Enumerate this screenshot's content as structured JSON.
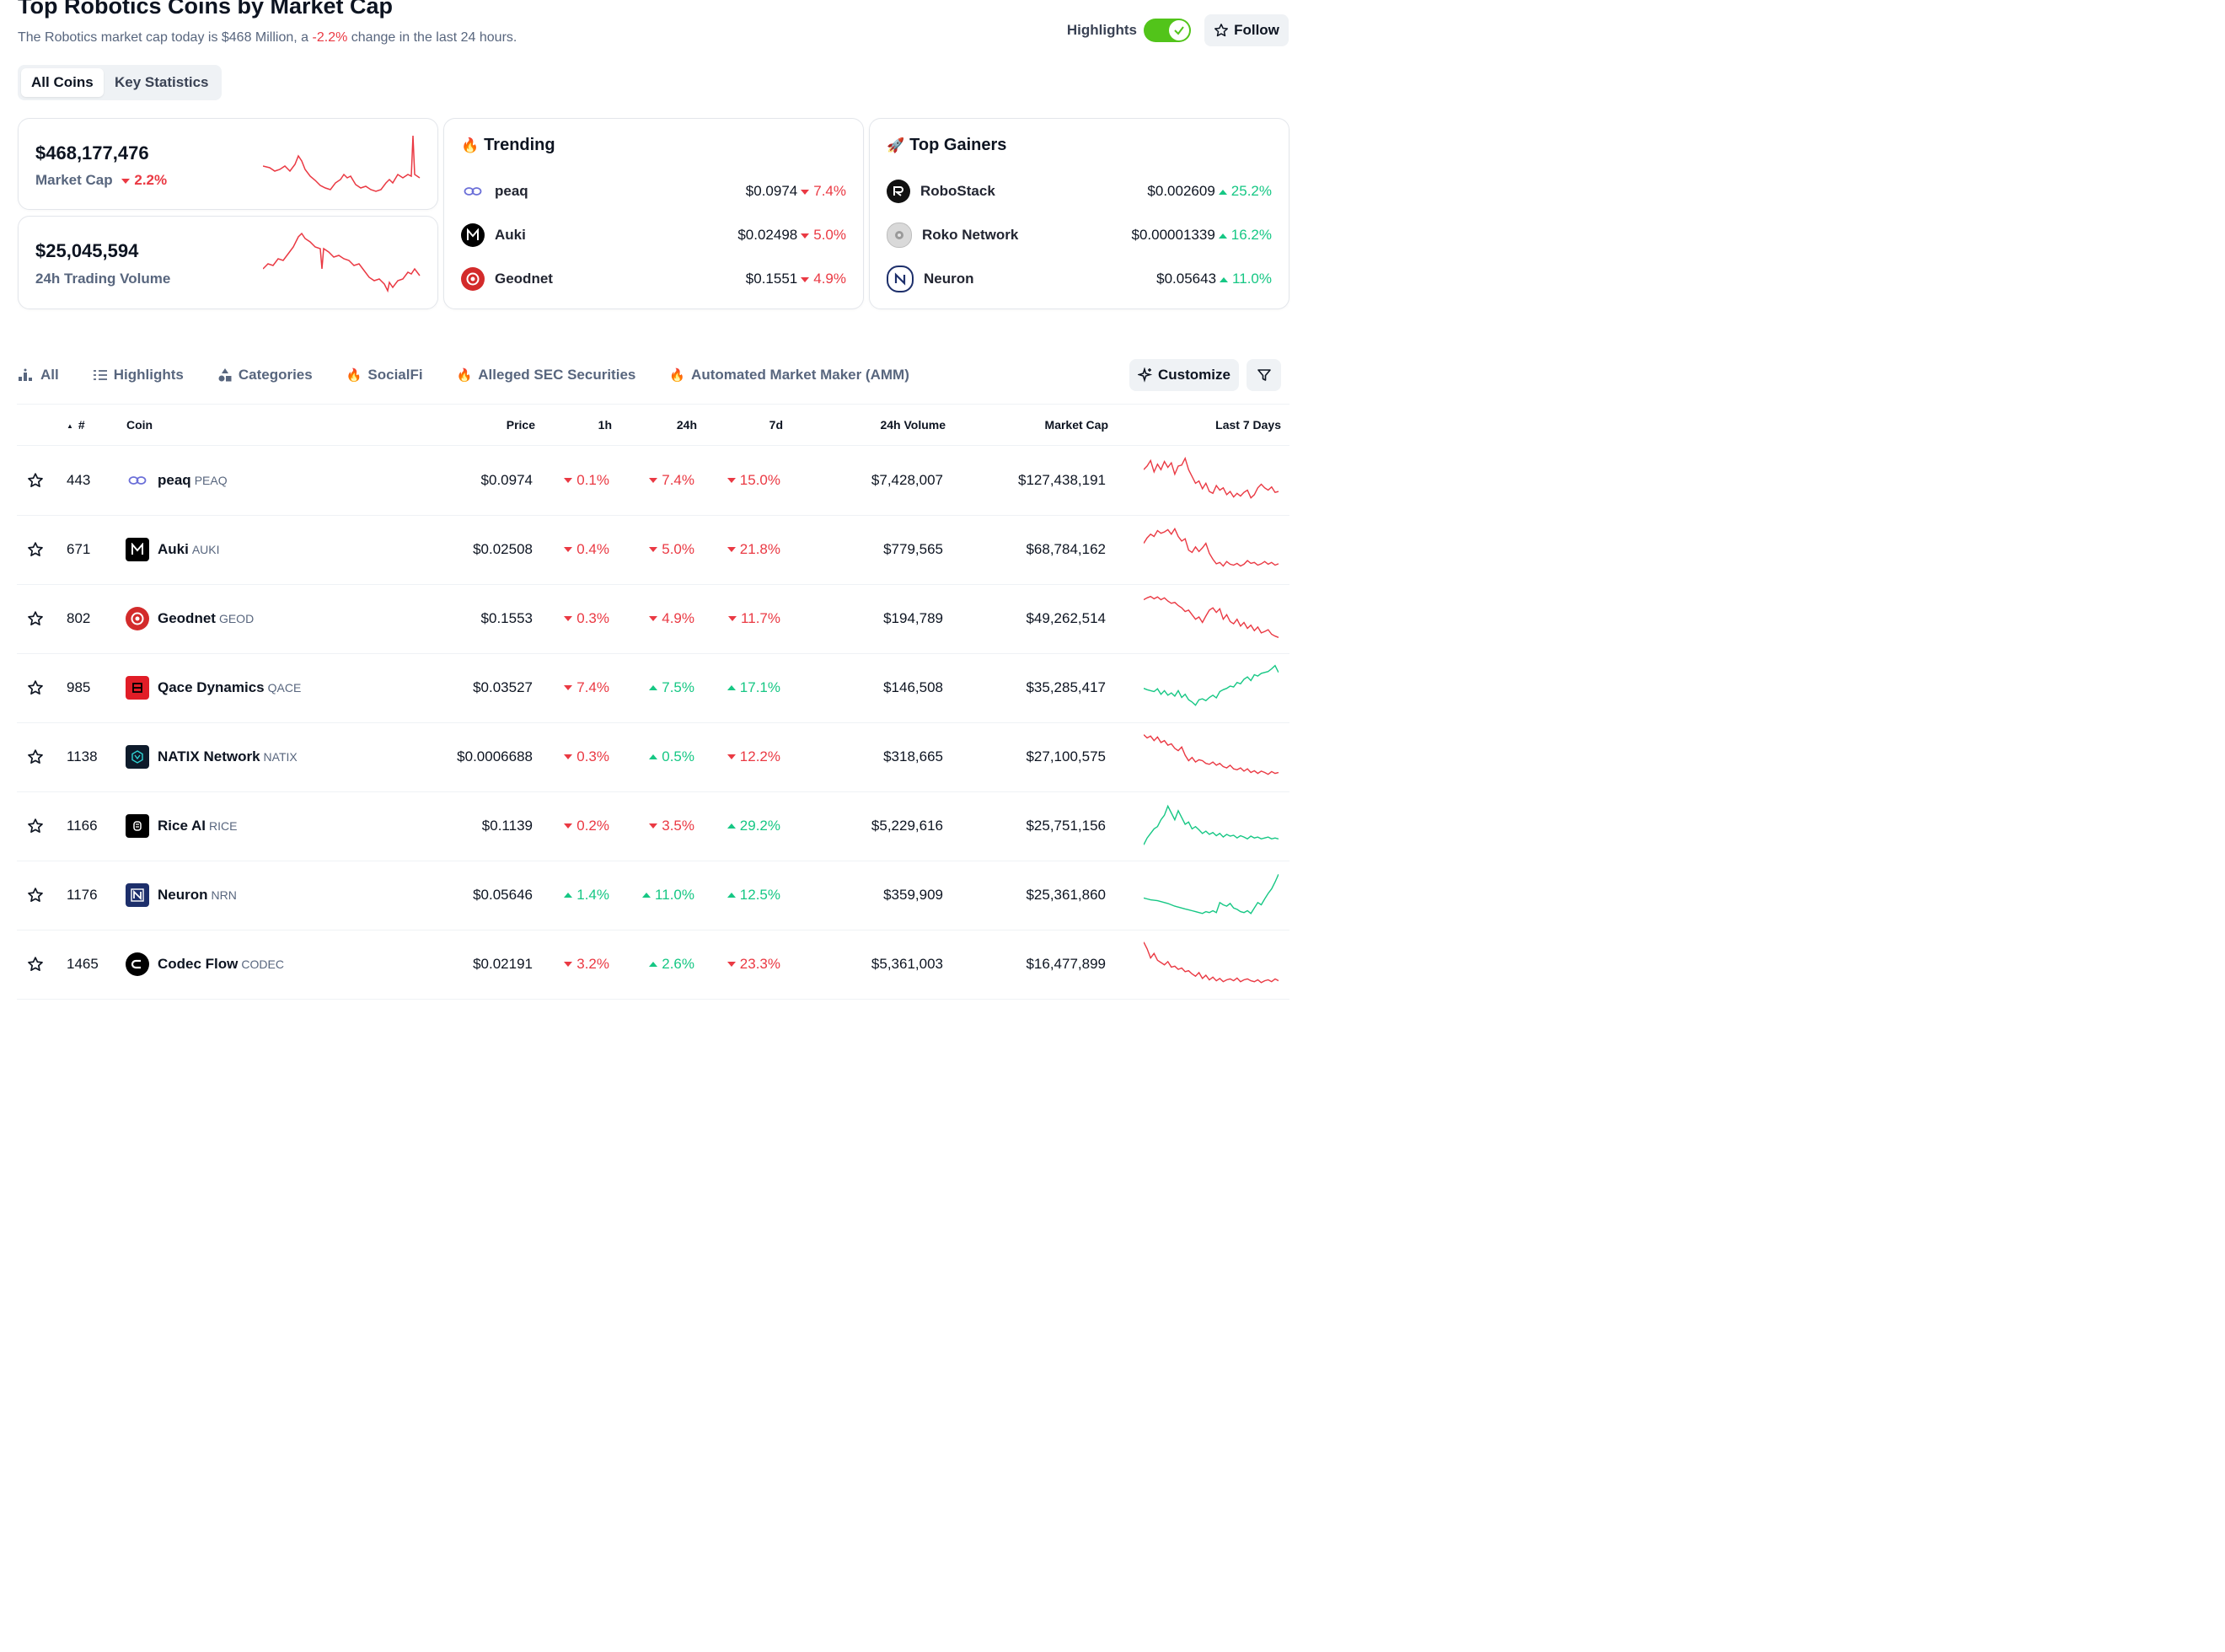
{
  "header": {
    "title": "Top Robotics Coins by Market Cap",
    "subtitle_prefix": "The Robotics market cap today is $468 Million, a",
    "subtitle_change": "-2.2%",
    "subtitle_suffix": "change in the last 24 hours.",
    "highlights_label": "Highlights",
    "highlights_on": true,
    "follow_label": "Follow"
  },
  "view_tabs": [
    {
      "label": "All Coins",
      "active": true
    },
    {
      "label": "Key Statistics",
      "active": false
    }
  ],
  "stats": {
    "market_cap": {
      "value": "$468,177,476",
      "label": "Market Cap",
      "change": "2.2%",
      "direction": "down"
    },
    "volume": {
      "value": "$25,045,594",
      "label": "24h Trading Volume"
    }
  },
  "trending": {
    "title": "Trending",
    "icon": "fire-icon",
    "items": [
      {
        "name": "peaq",
        "price": "$0.0974",
        "change": "7.4%",
        "direction": "down"
      },
      {
        "name": "Auki",
        "price": "$0.02498",
        "change": "5.0%",
        "direction": "down"
      },
      {
        "name": "Geodnet",
        "price": "$0.1551",
        "change": "4.9%",
        "direction": "down"
      }
    ]
  },
  "top_gainers": {
    "title": "Top Gainers",
    "icon": "rocket-icon",
    "items": [
      {
        "name": "RoboStack",
        "price": "$0.002609",
        "change": "25.2%",
        "direction": "up"
      },
      {
        "name": "Roko Network",
        "price": "$0.00001339",
        "change": "16.2%",
        "direction": "up"
      },
      {
        "name": "Neuron",
        "price": "$0.05643",
        "change": "11.0%",
        "direction": "up"
      }
    ]
  },
  "filter_tabs": [
    {
      "label": "All",
      "icon": "bar-chart-icon"
    },
    {
      "label": "Highlights",
      "icon": "list-icon"
    },
    {
      "label": "Categories",
      "icon": "shapes-icon"
    },
    {
      "label": "SocialFi",
      "icon": "fire-icon"
    },
    {
      "label": "Alleged SEC Securities",
      "icon": "fire-icon"
    },
    {
      "label": "Automated Market Maker (AMM)",
      "icon": "fire-icon"
    }
  ],
  "customize_label": "Customize",
  "table": {
    "sort_indicator": "▲",
    "headers": {
      "rank": "#",
      "coin": "Coin",
      "price": "Price",
      "h1": "1h",
      "h24": "24h",
      "d7": "7d",
      "volume": "24h Volume",
      "mcap": "Market Cap",
      "last7": "Last 7 Days"
    },
    "rows": [
      {
        "rank": "443",
        "name": "peaq",
        "symbol": "PEAQ",
        "price": "$0.0974",
        "h1": "0.1%",
        "h1_dir": "down",
        "h24": "7.4%",
        "h24_dir": "down",
        "d7": "15.0%",
        "d7_dir": "down",
        "volume": "$7,428,007",
        "mcap": "$127,438,191",
        "trend": "down"
      },
      {
        "rank": "671",
        "name": "Auki",
        "symbol": "AUKI",
        "price": "$0.02508",
        "h1": "0.4%",
        "h1_dir": "down",
        "h24": "5.0%",
        "h24_dir": "down",
        "d7": "21.8%",
        "d7_dir": "down",
        "volume": "$779,565",
        "mcap": "$68,784,162",
        "trend": "down"
      },
      {
        "rank": "802",
        "name": "Geodnet",
        "symbol": "GEOD",
        "price": "$0.1553",
        "h1": "0.3%",
        "h1_dir": "down",
        "h24": "4.9%",
        "h24_dir": "down",
        "d7": "11.7%",
        "d7_dir": "down",
        "volume": "$194,789",
        "mcap": "$49,262,514",
        "trend": "down"
      },
      {
        "rank": "985",
        "name": "Qace Dynamics",
        "symbol": "QACE",
        "price": "$0.03527",
        "h1": "7.4%",
        "h1_dir": "down",
        "h24": "7.5%",
        "h24_dir": "up",
        "d7": "17.1%",
        "d7_dir": "up",
        "volume": "$146,508",
        "mcap": "$35,285,417",
        "trend": "up"
      },
      {
        "rank": "1138",
        "name": "NATIX Network",
        "symbol": "NATIX",
        "price": "$0.0006688",
        "h1": "0.3%",
        "h1_dir": "down",
        "h24": "0.5%",
        "h24_dir": "up",
        "d7": "12.2%",
        "d7_dir": "down",
        "volume": "$318,665",
        "mcap": "$27,100,575",
        "trend": "down"
      },
      {
        "rank": "1166",
        "name": "Rice AI",
        "symbol": "RICE",
        "price": "$0.1139",
        "h1": "0.2%",
        "h1_dir": "down",
        "h24": "3.5%",
        "h24_dir": "down",
        "d7": "29.2%",
        "d7_dir": "up",
        "volume": "$5,229,616",
        "mcap": "$25,751,156",
        "trend": "up"
      },
      {
        "rank": "1176",
        "name": "Neuron",
        "symbol": "NRN",
        "price": "$0.05646",
        "h1": "1.4%",
        "h1_dir": "up",
        "h24": "11.0%",
        "h24_dir": "up",
        "d7": "12.5%",
        "d7_dir": "up",
        "volume": "$359,909",
        "mcap": "$25,361,860",
        "trend": "up"
      },
      {
        "rank": "1465",
        "name": "Codec Flow",
        "symbol": "CODEC",
        "price": "$0.02191",
        "h1": "3.2%",
        "h1_dir": "down",
        "h24": "2.6%",
        "h24_dir": "up",
        "d7": "23.3%",
        "d7_dir": "down",
        "volume": "$5,361,003",
        "mcap": "$16,477,899",
        "trend": "down"
      }
    ]
  },
  "colors": {
    "negative": "#ea3943",
    "positive": "#16c784",
    "toggle": "#52c41a"
  }
}
